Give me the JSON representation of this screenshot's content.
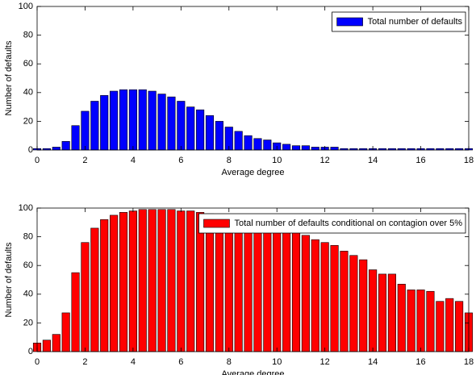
{
  "chart_data": [
    {
      "type": "bar",
      "xlabel": "Average degree",
      "ylabel": "Number of defaults",
      "x": [
        0,
        0.4,
        0.8,
        1.2,
        1.6,
        2.0,
        2.4,
        2.8,
        3.2,
        3.6,
        4.0,
        4.4,
        4.8,
        5.2,
        5.6,
        6.0,
        6.4,
        6.8,
        7.2,
        7.6,
        8.0,
        8.4,
        8.8,
        9.2,
        9.6,
        10.0,
        10.4,
        10.8,
        11.2,
        11.6,
        12.0,
        12.4,
        12.8,
        13.2,
        13.6,
        14.0,
        14.4,
        14.8,
        15.2,
        15.6,
        16.0,
        16.4,
        16.8,
        17.2,
        17.6,
        18.0
      ],
      "series": [
        {
          "name": "Total number of defaults",
          "color": "#0000ff",
          "values": [
            1,
            1,
            2,
            6,
            17,
            27,
            34,
            38,
            41,
            42,
            42,
            42,
            41,
            39,
            37,
            34,
            30,
            28,
            24,
            20,
            16,
            13,
            10,
            8,
            7,
            5,
            4,
            3,
            3,
            2,
            2,
            2,
            1,
            1,
            1,
            1,
            1,
            1,
            1,
            1,
            1,
            1,
            1,
            1,
            1,
            1
          ]
        }
      ],
      "xlim": [
        0,
        18
      ],
      "xticks": [
        0,
        2,
        4,
        6,
        8,
        10,
        12,
        14,
        16,
        18
      ],
      "ylim": [
        0,
        100
      ],
      "yticks": [
        0,
        20,
        40,
        60,
        80,
        100
      ],
      "legend": "upper right"
    },
    {
      "type": "bar",
      "xlabel": "Average degree",
      "ylabel": "Number of defaults",
      "x": [
        0,
        0.4,
        0.8,
        1.2,
        1.6,
        2.0,
        2.4,
        2.8,
        3.2,
        3.6,
        4.0,
        4.4,
        4.8,
        5.2,
        5.6,
        6.0,
        6.4,
        6.8,
        7.2,
        7.6,
        8.0,
        8.4,
        8.8,
        9.2,
        9.6,
        10.0,
        10.4,
        10.8,
        11.2,
        11.6,
        12.0,
        12.4,
        12.8,
        13.2,
        13.6,
        14.0,
        14.4,
        14.8,
        15.2,
        15.6,
        16.0,
        16.4,
        16.8,
        17.2,
        17.6,
        18.0
      ],
      "series": [
        {
          "name": "Total number of defaults conditional on contagion over 5%",
          "color": "#ff0000",
          "values": [
            6,
            8,
            12,
            27,
            55,
            76,
            86,
            92,
            95,
            97,
            98,
            99,
            99,
            99,
            99,
            98,
            98,
            97,
            96,
            95,
            94,
            92,
            90,
            88,
            87,
            86,
            85,
            84,
            81,
            78,
            76,
            74,
            70,
            67,
            64,
            57,
            54,
            54,
            47,
            43,
            43,
            42,
            35,
            37,
            35,
            27
          ]
        }
      ],
      "xlim": [
        0,
        18
      ],
      "xticks": [
        0,
        2,
        4,
        6,
        8,
        10,
        12,
        14,
        16,
        18
      ],
      "ylim": [
        0,
        100
      ],
      "yticks": [
        0,
        20,
        40,
        60,
        80,
        100
      ],
      "legend": "upper right"
    }
  ]
}
